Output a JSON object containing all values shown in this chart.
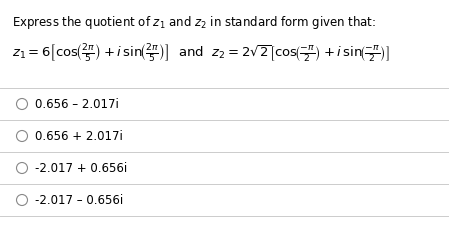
{
  "title": "Express the quotient of $z_1$ and $z_2$ in standard form given that:",
  "options": [
    "0.656 – 2.017i",
    "0.656 + 2.017i",
    "-2.017 + 0.656i",
    "-2.017 – 0.656i"
  ],
  "bg_color": "#ffffff",
  "text_color": "#000000",
  "title_fontsize": 8.5,
  "formula_fontsize": 9.5,
  "option_fontsize": 8.5,
  "divider_color": "#cccccc",
  "circle_color": "#888888"
}
